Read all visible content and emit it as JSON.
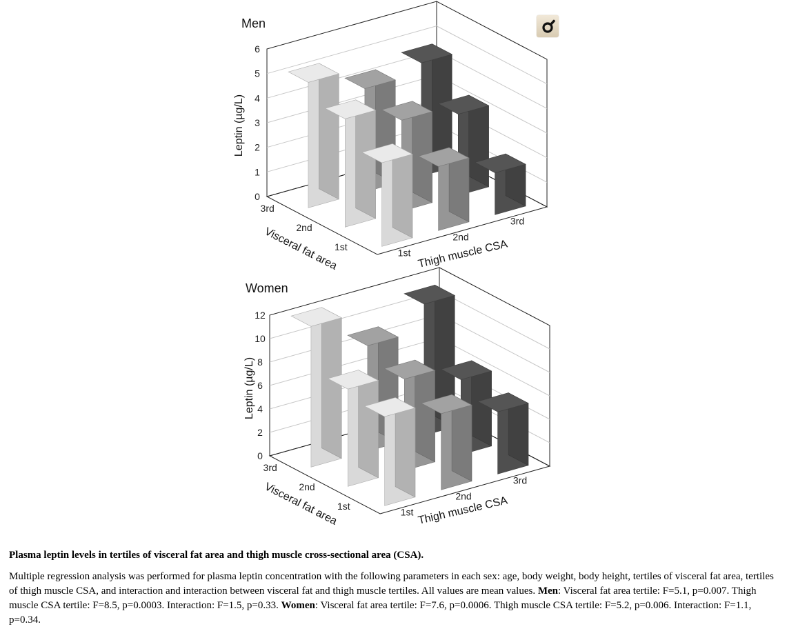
{
  "chart_data": [
    {
      "type": "bar",
      "title": "Men",
      "zlabel": "Leptin (µg/L)",
      "zlim": [
        0,
        6
      ],
      "zticks": [
        0,
        1,
        2,
        3,
        4,
        5,
        6
      ],
      "xlabel": "Thigh muscle CSA",
      "xcategories": [
        "1st",
        "2nd",
        "3rd"
      ],
      "ylabel": "Visceral fat area",
      "ycategories": [
        "1st",
        "2nd",
        "3rd"
      ],
      "series": [
        {
          "name": "1st",
          "values": [
            3.4,
            2.6,
            1.7
          ]
        },
        {
          "name": "2nd",
          "values": [
            4.4,
            3.7,
            3.3
          ]
        },
        {
          "name": "3rd",
          "values": [
            5.1,
            4.2,
            4.6
          ]
        }
      ],
      "colors": [
        "#d9d9d9",
        "#969696",
        "#4f4f4f"
      ]
    },
    {
      "type": "bar",
      "title": "Women",
      "zlabel": "Leptin (µg/L)",
      "zlim": [
        0,
        12
      ],
      "zticks": [
        0,
        2,
        4,
        6,
        8,
        10,
        12
      ],
      "xlabel": "Thigh muscle CSA",
      "xcategories": [
        "1st",
        "2nd",
        "3rd"
      ],
      "ylabel": "Visceral fat area",
      "ycategories": [
        "1st",
        "2nd",
        "3rd"
      ],
      "series": [
        {
          "name": "1st",
          "values": [
            7.6,
            6.5,
            5.3
          ]
        },
        {
          "name": "2nd",
          "values": [
            8.3,
            7.8,
            6.4
          ]
        },
        {
          "name": "3rd",
          "values": [
            12.0,
            9.0,
            11.2
          ]
        }
      ],
      "colors": [
        "#d9d9d9",
        "#969696",
        "#4f4f4f"
      ]
    }
  ],
  "zoom_button": {
    "icon": "magnifier-icon"
  },
  "caption": {
    "title": "Plasma leptin levels in tertiles of visceral fat area and thigh muscle cross-sectional area (CSA).",
    "intro": "Multiple regression analysis was performed for plasma leptin concentration with the following parameters in each sex: age, body weight, body height, tertiles of visceral fat area, tertiles of thigh muscle CSA, and interaction and interaction between visceral fat and thigh muscle tertiles. All values are mean values.",
    "men_label": "Men",
    "men_text": ": Visceral fat area tertile: F=5.1, p=0.007. Thigh muscle CSA tertile: F=8.5, p=0.0003. Interaction: F=1.5, p=0.33.",
    "women_label": "Women",
    "women_text": ": Visceral fat area tertile: F=7.6, p=0.0006. Thigh muscle CSA tertile: F=5.2, p=0.006. Interaction: F=1.1, p=0.34."
  }
}
